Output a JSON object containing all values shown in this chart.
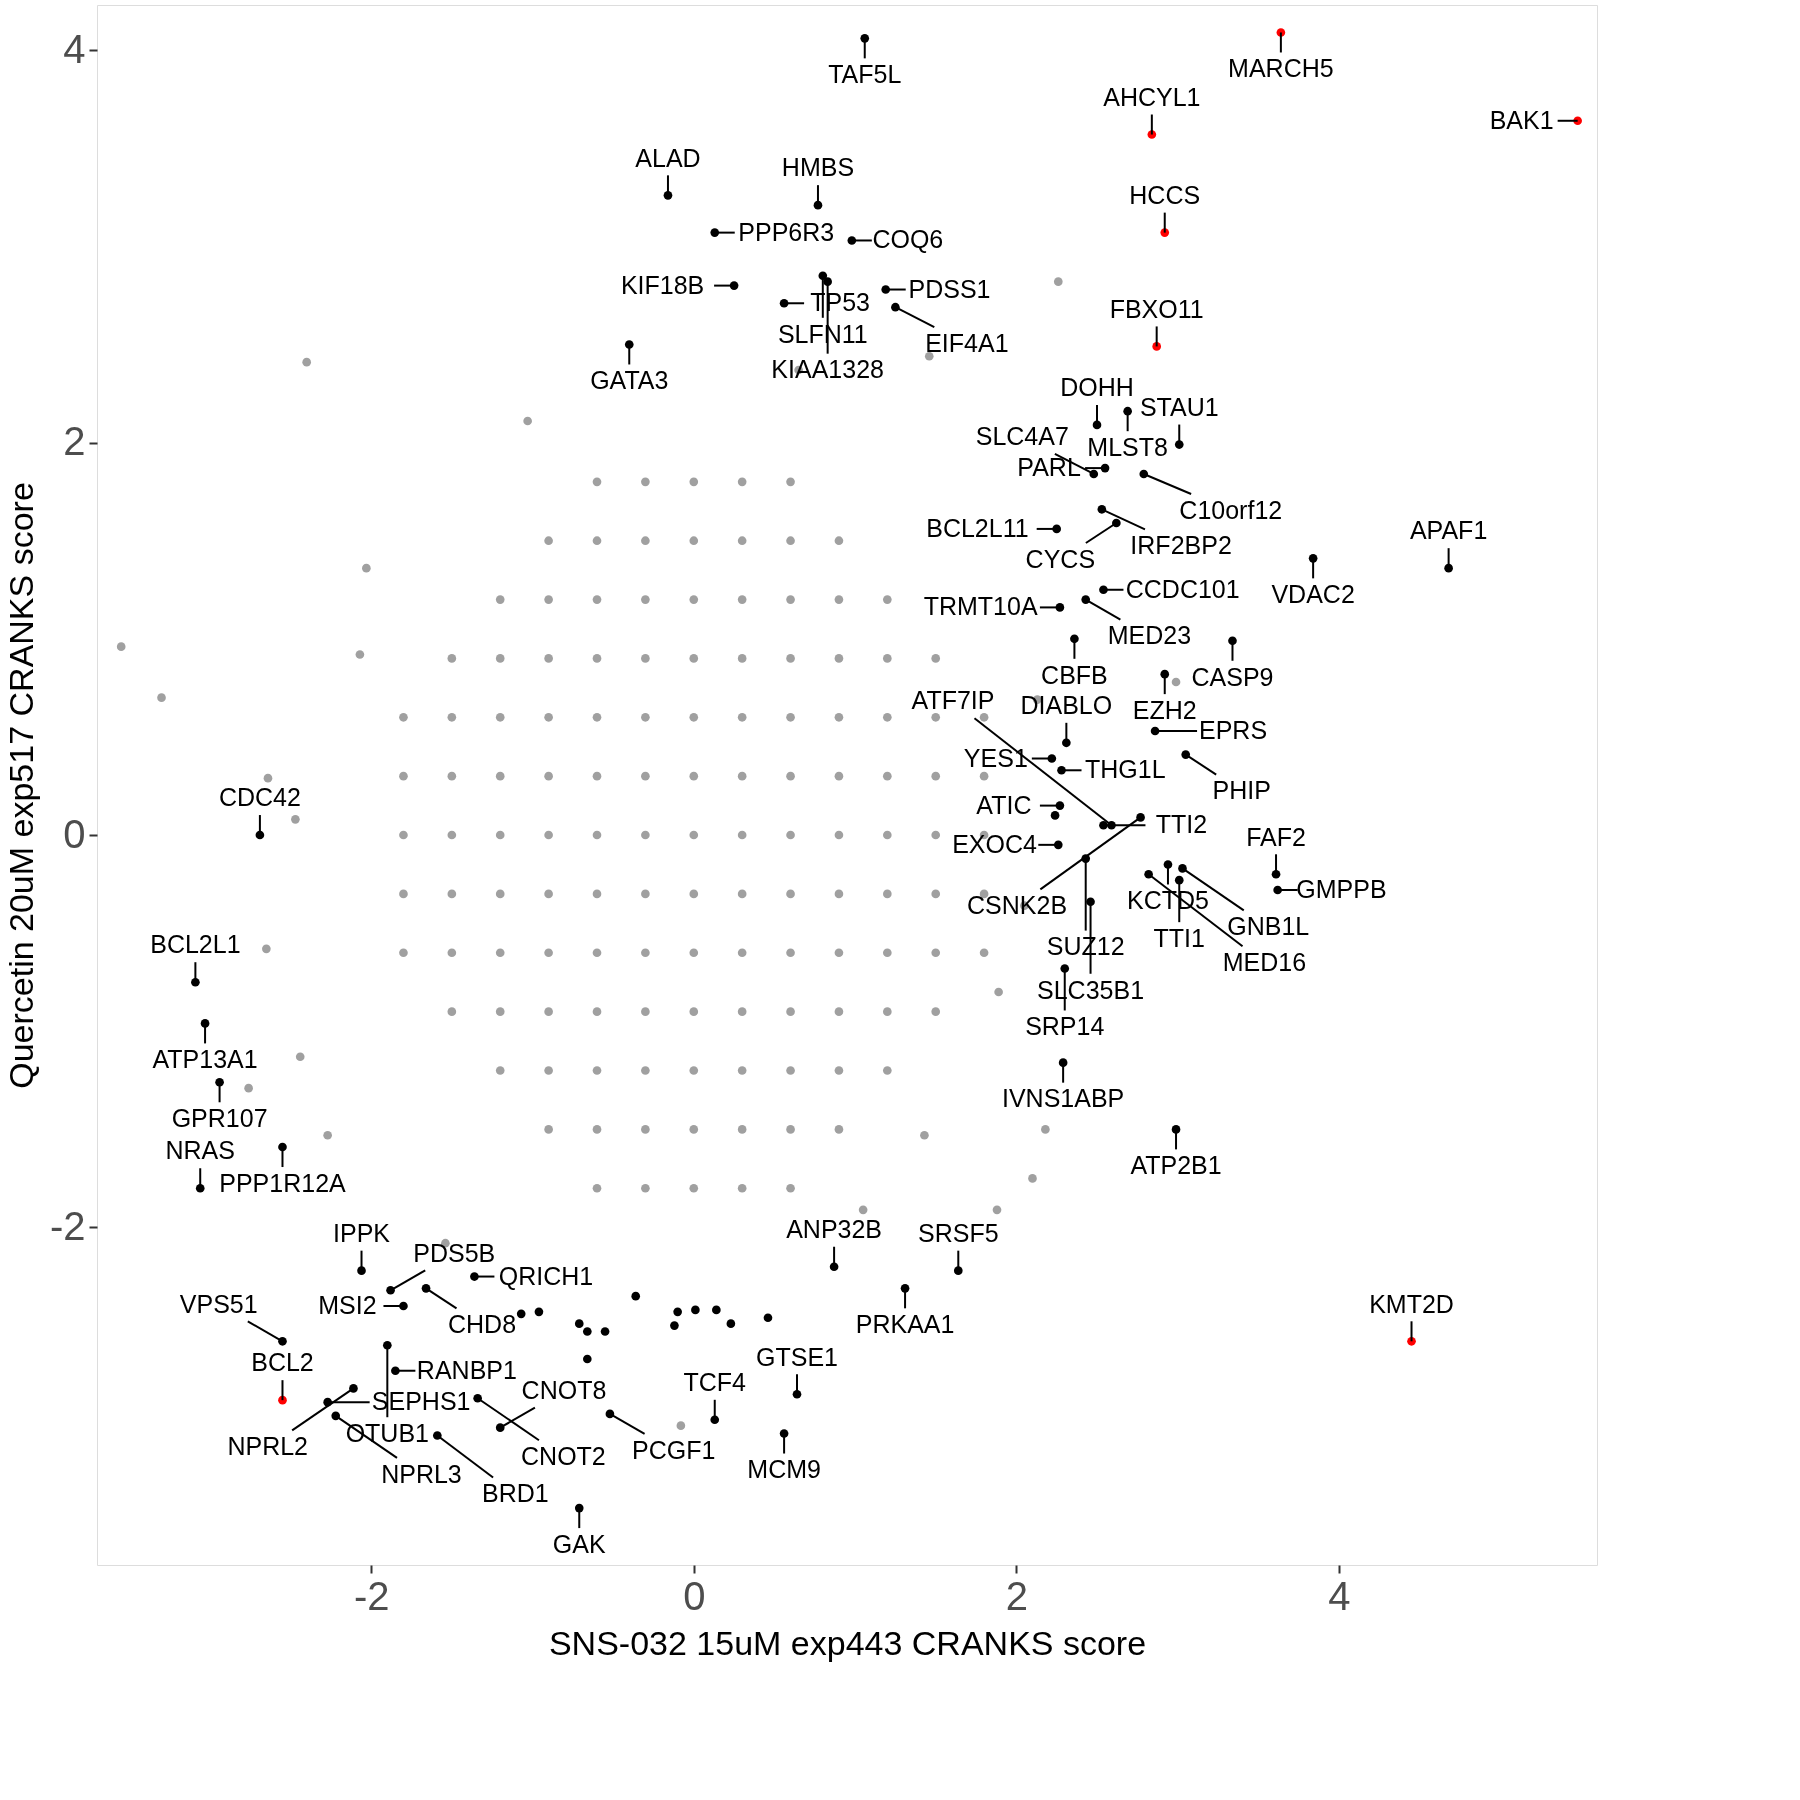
{
  "chart_data": {
    "type": "scatter",
    "xlabel": "SNS-032 15uM exp443 CRANKS score",
    "ylabel": "Quercetin 20uM exp517 CRANKS score",
    "xlim": [
      -3.7,
      5.6
    ],
    "ylim": [
      -3.72,
      4.23
    ],
    "xticks": [
      {
        "value": -2,
        "label": "-2"
      },
      {
        "value": 0,
        "label": "0"
      },
      {
        "value": 2,
        "label": "2"
      },
      {
        "value": 4,
        "label": "4"
      }
    ],
    "yticks": [
      {
        "value": -2,
        "label": "-2"
      },
      {
        "value": 0,
        "label": "0"
      },
      {
        "value": 2,
        "label": "2"
      },
      {
        "value": 4,
        "label": "4"
      }
    ],
    "grid": false,
    "marker": "circle",
    "series": [
      {
        "color": "#a0a0a0",
        "x": [
          -0.6,
          -0.3,
          0,
          0.3,
          0.6,
          -0.9,
          -0.6,
          -0.3,
          0,
          0.3,
          0.6,
          0.9,
          -1.2,
          -0.9,
          -0.6,
          -0.3,
          0,
          0.3,
          0.6,
          0.9,
          1.2,
          -1.5,
          -1.2,
          -0.9,
          -0.6,
          -0.3,
          0,
          0.3,
          0.6,
          0.9,
          1.2,
          1.5,
          -1.8,
          -1.5,
          -1.2,
          -0.9,
          -0.6,
          -0.3,
          0,
          0.3,
          0.6,
          0.9,
          1.2,
          1.5,
          1.8,
          -1.8,
          -1.5,
          -1.2,
          -0.9,
          -0.6,
          -0.3,
          0,
          0.3,
          0.6,
          0.9,
          1.2,
          1.5,
          1.8,
          -1.8,
          -1.5,
          -1.2,
          -0.9,
          -0.6,
          -0.3,
          0,
          0.3,
          0.6,
          0.9,
          1.2,
          1.5,
          1.8,
          -1.8,
          -1.5,
          -1.2,
          -0.9,
          -0.6,
          -0.3,
          0,
          0.3,
          0.6,
          0.9,
          1.2,
          1.5,
          1.8,
          -1.8,
          -1.5,
          -1.2,
          -0.9,
          -0.6,
          -0.3,
          0,
          0.3,
          0.6,
          0.9,
          1.2,
          1.5,
          1.8,
          -1.5,
          -1.2,
          -0.9,
          -0.6,
          -0.3,
          0,
          0.3,
          0.6,
          0.9,
          1.2,
          1.5,
          -1.2,
          -0.9,
          -0.6,
          -0.3,
          0,
          0.3,
          0.6,
          0.9,
          1.2,
          -0.9,
          -0.6,
          -0.3,
          0,
          0.3,
          0.6,
          0.9,
          -0.6,
          -0.3,
          0,
          0.3,
          0.6,
          -3.55,
          -3.3,
          -2.4,
          -1.03,
          -2.64,
          -2.47,
          -2.65,
          -2.44,
          -2.76,
          -2.03,
          -2.07,
          2.26,
          1.46,
          0.65,
          2.99,
          1.88,
          2.1,
          1.43,
          2.18,
          -0.08,
          1.05,
          -1.54,
          -2.27,
          2.13,
          2.05,
          1.89
        ],
        "values": [
          1.8,
          1.8,
          1.8,
          1.8,
          1.8,
          1.5,
          1.5,
          1.5,
          1.5,
          1.5,
          1.5,
          1.5,
          1.2,
          1.2,
          1.2,
          1.2,
          1.2,
          1.2,
          1.2,
          1.2,
          1.2,
          0.9,
          0.9,
          0.9,
          0.9,
          0.9,
          0.9,
          0.9,
          0.9,
          0.9,
          0.9,
          0.9,
          0.6,
          0.6,
          0.6,
          0.6,
          0.6,
          0.6,
          0.6,
          0.6,
          0.6,
          0.6,
          0.6,
          0.6,
          0.6,
          0.3,
          0.3,
          0.3,
          0.3,
          0.3,
          0.3,
          0.3,
          0.3,
          0.3,
          0.3,
          0.3,
          0.3,
          0.3,
          0,
          0,
          0,
          0,
          0,
          0,
          0,
          0,
          0,
          0,
          0,
          0,
          0,
          -0.3,
          -0.3,
          -0.3,
          -0.3,
          -0.3,
          -0.3,
          -0.3,
          -0.3,
          -0.3,
          -0.3,
          -0.3,
          -0.3,
          -0.3,
          -0.6,
          -0.6,
          -0.6,
          -0.6,
          -0.6,
          -0.6,
          -0.6,
          -0.6,
          -0.6,
          -0.6,
          -0.6,
          -0.6,
          -0.6,
          -0.9,
          -0.9,
          -0.9,
          -0.9,
          -0.9,
          -0.9,
          -0.9,
          -0.9,
          -0.9,
          -0.9,
          -0.9,
          -1.2,
          -1.2,
          -1.2,
          -1.2,
          -1.2,
          -1.2,
          -1.2,
          -1.2,
          -1.2,
          -1.5,
          -1.5,
          -1.5,
          -1.5,
          -1.5,
          -1.5,
          -1.5,
          -1.8,
          -1.8,
          -1.8,
          -1.8,
          -1.8,
          0.96,
          0.7,
          2.41,
          2.11,
          0.29,
          0.08,
          -0.58,
          -1.13,
          -1.29,
          1.36,
          0.92,
          2.82,
          2.44,
          2.37,
          0.78,
          -1.91,
          -1.75,
          -1.53,
          -1.5,
          -3.01,
          -1.91,
          -2.08,
          -1.53,
          0.69,
          -0.36,
          -0.8
        ]
      },
      {
        "color": "#000000",
        "x": [
          1.06,
          -0.16,
          0.77,
          0.98,
          0.13,
          0.8,
          0.83,
          1.19,
          1.25,
          0.25,
          0.56,
          -0.4,
          2.5,
          2.69,
          3.01,
          2.79,
          2.55,
          2.48,
          2.53,
          2.62,
          2.25,
          3.84,
          4.68,
          2.54,
          2.27,
          2.43,
          2.36,
          3.34,
          2.92,
          2.31,
          2.28,
          2.22,
          2.86,
          3.05,
          2.77,
          2.94,
          2.54,
          2.27,
          2.26,
          2.43,
          3.03,
          3.61,
          3.62,
          3.01,
          2.59,
          2.46,
          2.82,
          2.3,
          2.29,
          2.99,
          -2.69,
          -3.09,
          -3.03,
          -2.94,
          -2.55,
          -3.06,
          -2.06,
          -1.88,
          -1.66,
          -1.36,
          -1.8,
          -2.55,
          -1.9,
          -1.85,
          -2.11,
          -2.27,
          -2.22,
          -1.59,
          -1.34,
          -1.2,
          0.87,
          1.64,
          1.31,
          0.64,
          0.13,
          -0.52,
          0.56,
          -0.71,
          -1.07,
          -0.96,
          -0.71,
          -0.66,
          -0.55,
          -0.66,
          -0.36,
          -0.1,
          0.01,
          -0.12,
          0.14,
          0.23,
          0.46,
          2.24
        ],
        "values": [
          4.06,
          3.26,
          3.21,
          3.03,
          3.07,
          2.85,
          2.82,
          2.78,
          2.69,
          2.8,
          2.71,
          2.5,
          2.09,
          2.16,
          1.99,
          1.84,
          1.87,
          1.84,
          1.66,
          1.59,
          1.56,
          1.41,
          1.36,
          1.25,
          1.16,
          1.2,
          1.0,
          0.99,
          0.82,
          0.47,
          0.33,
          0.39,
          0.53,
          0.41,
          0.09,
          -0.15,
          0.05,
          0.15,
          -0.05,
          -0.12,
          -0.17,
          -0.2,
          -0.28,
          -0.23,
          0.05,
          -0.34,
          -0.2,
          -0.68,
          -1.16,
          -1.5,
          0.0,
          -0.75,
          -0.96,
          -1.26,
          -1.59,
          -1.8,
          -2.22,
          -2.32,
          -2.31,
          -2.25,
          -2.4,
          -2.58,
          -2.6,
          -2.73,
          -2.82,
          -2.89,
          -2.96,
          -3.06,
          -2.87,
          -3.02,
          -2.2,
          -2.22,
          -2.31,
          -2.85,
          -2.98,
          -2.95,
          -3.05,
          -3.43,
          -2.44,
          -2.43,
          -2.49,
          -2.53,
          -2.53,
          -2.67,
          -2.35,
          -2.43,
          -2.42,
          -2.5,
          -2.42,
          -2.49,
          -2.46,
          0.1
        ]
      },
      {
        "color": "#ff0000",
        "x": [
          3.64,
          5.48,
          2.84,
          2.92,
          2.87,
          4.45,
          -2.55
        ],
        "values": [
          4.09,
          3.64,
          3.57,
          3.07,
          2.49,
          -2.58,
          -2.88
        ]
      }
    ],
    "annotations": [
      {
        "text": "MARCH5",
        "x": 3.64,
        "y": 4.09
      },
      {
        "text": "BAK1",
        "x": 5.48,
        "y": 3.64
      },
      {
        "text": "AHCYL1",
        "x": 2.84,
        "y": 3.57
      },
      {
        "text": "HCCS",
        "x": 2.92,
        "y": 3.07
      },
      {
        "text": "FBXO11",
        "x": 2.87,
        "y": 2.49
      },
      {
        "text": "KMT2D",
        "x": 4.45,
        "y": -2.58
      },
      {
        "text": "BCL2",
        "x": -2.55,
        "y": -2.88
      },
      {
        "text": "TAF5L",
        "x": 1.06,
        "y": 4.06
      },
      {
        "text": "ALAD",
        "x": -0.16,
        "y": 3.26
      },
      {
        "text": "HMBS",
        "x": 0.77,
        "y": 3.21
      },
      {
        "text": "COQ6",
        "x": 0.98,
        "y": 3.03
      },
      {
        "text": "PPP6R3",
        "x": 0.13,
        "y": 3.07
      },
      {
        "text": "SLFN11",
        "x": 0.8,
        "y": 2.85
      },
      {
        "text": "KIAA1328",
        "x": 0.83,
        "y": 2.82
      },
      {
        "text": "PDSS1",
        "x": 1.19,
        "y": 2.78
      },
      {
        "text": "EIF4A1",
        "x": 1.25,
        "y": 2.69
      },
      {
        "text": "KIF18B",
        "x": 0.25,
        "y": 2.8
      },
      {
        "text": "TP53",
        "x": 0.56,
        "y": 2.71
      },
      {
        "text": "GATA3",
        "x": -0.4,
        "y": 2.5
      },
      {
        "text": "DOHH",
        "x": 2.5,
        "y": 2.09
      },
      {
        "text": "MLST8",
        "x": 2.69,
        "y": 2.16
      },
      {
        "text": "STAU1",
        "x": 3.01,
        "y": 1.99
      },
      {
        "text": "C10orf12",
        "x": 2.79,
        "y": 1.84
      },
      {
        "text": "PARL",
        "x": 2.55,
        "y": 1.87
      },
      {
        "text": "SLC4A7",
        "x": 2.48,
        "y": 1.84
      },
      {
        "text": "IRF2BP2",
        "x": 2.53,
        "y": 1.66
      },
      {
        "text": "CYCS",
        "x": 2.62,
        "y": 1.59
      },
      {
        "text": "BCL2L11",
        "x": 2.25,
        "y": 1.56
      },
      {
        "text": "VDAC2",
        "x": 3.84,
        "y": 1.41
      },
      {
        "text": "APAF1",
        "x": 4.68,
        "y": 1.36
      },
      {
        "text": "CCDC101",
        "x": 2.54,
        "y": 1.25
      },
      {
        "text": "TRMT10A",
        "x": 2.27,
        "y": 1.16
      },
      {
        "text": "MED23",
        "x": 2.43,
        "y": 1.2
      },
      {
        "text": "CBFB",
        "x": 2.36,
        "y": 1.0
      },
      {
        "text": "CASP9",
        "x": 3.34,
        "y": 0.99
      },
      {
        "text": "EZH2",
        "x": 2.92,
        "y": 0.82
      },
      {
        "text": "DIABLO",
        "x": 2.31,
        "y": 0.47
      },
      {
        "text": "THG1L",
        "x": 2.28,
        "y": 0.33
      },
      {
        "text": "YES1",
        "x": 2.22,
        "y": 0.39
      },
      {
        "text": "EPRS",
        "x": 2.86,
        "y": 0.53
      },
      {
        "text": "PHIP",
        "x": 3.05,
        "y": 0.41
      },
      {
        "text": "CSNK2B",
        "x": 2.77,
        "y": 0.09
      },
      {
        "text": "KCTD5",
        "x": 2.94,
        "y": -0.15
      },
      {
        "text": "TTI2",
        "x": 2.54,
        "y": 0.05
      },
      {
        "text": "ATIC",
        "x": 2.27,
        "y": 0.15
      },
      {
        "text": "EXOC4",
        "x": 2.26,
        "y": -0.05
      },
      {
        "text": "SUZ12",
        "x": 2.43,
        "y": -0.12
      },
      {
        "text": "GNB1L",
        "x": 3.03,
        "y": -0.17
      },
      {
        "text": "FAF2",
        "x": 3.61,
        "y": -0.2
      },
      {
        "text": "GMPPB",
        "x": 3.62,
        "y": -0.28
      },
      {
        "text": "TTI1",
        "x": 3.01,
        "y": -0.23
      },
      {
        "text": "ATF7IP",
        "x": 2.59,
        "y": 0.05
      },
      {
        "text": "SLC35B1",
        "x": 2.46,
        "y": -0.34
      },
      {
        "text": "MED16",
        "x": 2.82,
        "y": -0.2
      },
      {
        "text": "SRP14",
        "x": 2.3,
        "y": -0.68
      },
      {
        "text": "IVNS1ABP",
        "x": 2.29,
        "y": -1.16
      },
      {
        "text": "ATP2B1",
        "x": 2.99,
        "y": -1.5
      },
      {
        "text": "CDC42",
        "x": -2.69,
        "y": 0.0
      },
      {
        "text": "BCL2L1",
        "x": -3.09,
        "y": -0.75
      },
      {
        "text": "ATP13A1",
        "x": -3.03,
        "y": -0.96
      },
      {
        "text": "GPR107",
        "x": -2.94,
        "y": -1.26
      },
      {
        "text": "PPP1R12A",
        "x": -2.55,
        "y": -1.59
      },
      {
        "text": "NRAS",
        "x": -3.06,
        "y": -1.8
      },
      {
        "text": "IPPK",
        "x": -2.06,
        "y": -2.22
      },
      {
        "text": "PDS5B",
        "x": -1.88,
        "y": -2.32
      },
      {
        "text": "CHD8",
        "x": -1.66,
        "y": -2.31
      },
      {
        "text": "QRICH1",
        "x": -1.36,
        "y": -2.25
      },
      {
        "text": "MSI2",
        "x": -1.8,
        "y": -2.4
      },
      {
        "text": "VPS51",
        "x": -2.55,
        "y": -2.58
      },
      {
        "text": "OTUB1",
        "x": -1.9,
        "y": -2.6
      },
      {
        "text": "RANBP1",
        "x": -1.85,
        "y": -2.73
      },
      {
        "text": "NPRL2",
        "x": -2.11,
        "y": -2.82
      },
      {
        "text": "SEPHS1",
        "x": -2.27,
        "y": -2.89
      },
      {
        "text": "NPRL3",
        "x": -2.22,
        "y": -2.96
      },
      {
        "text": "BRD1",
        "x": -1.59,
        "y": -3.06
      },
      {
        "text": "CNOT2",
        "x": -1.34,
        "y": -2.87
      },
      {
        "text": "CNOT8",
        "x": -1.2,
        "y": -3.02
      },
      {
        "text": "ANP32B",
        "x": 0.87,
        "y": -2.2
      },
      {
        "text": "SRSF5",
        "x": 1.64,
        "y": -2.22
      },
      {
        "text": "PRKAA1",
        "x": 1.31,
        "y": -2.31
      },
      {
        "text": "GTSE1",
        "x": 0.64,
        "y": -2.85
      },
      {
        "text": "TCF4",
        "x": 0.13,
        "y": -2.98
      },
      {
        "text": "PCGF1",
        "x": -0.52,
        "y": -2.95
      },
      {
        "text": "MCM9",
        "x": 0.56,
        "y": -3.05
      },
      {
        "text": "GAK",
        "x": -0.71,
        "y": -3.43
      }
    ]
  }
}
